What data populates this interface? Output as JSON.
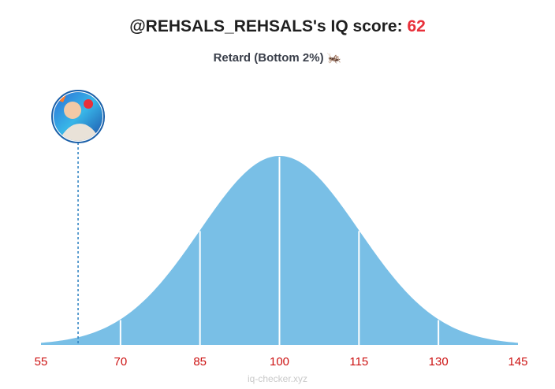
{
  "header": {
    "title_prefix": "@REHSALS_REHSALS's IQ score: ",
    "score": "62",
    "subtitle": "Retard (Bottom 2%)",
    "subtitle_emoji": "🦗"
  },
  "footer": {
    "text": "iq-checker.xyz"
  },
  "chart_data": {
    "type": "area",
    "title": "",
    "xlabel": "",
    "ylabel": "",
    "distribution": {
      "mean": 100,
      "sd": 15
    },
    "xlim": [
      55,
      145
    ],
    "x_ticks": [
      55,
      70,
      85,
      100,
      115,
      130,
      145
    ],
    "x_tick_labels": [
      "55",
      "70",
      "85",
      "100",
      "115",
      "130",
      "145"
    ],
    "sd_dividers": [
      70,
      85,
      100,
      115,
      130
    ],
    "marker": {
      "value": 62
    },
    "grid": false,
    "legend": "none",
    "colors": {
      "fill": "#79bfe6",
      "divider": "#ffffff",
      "tick_label": "#cc1111",
      "marker_line": "#2a7fc0"
    }
  }
}
